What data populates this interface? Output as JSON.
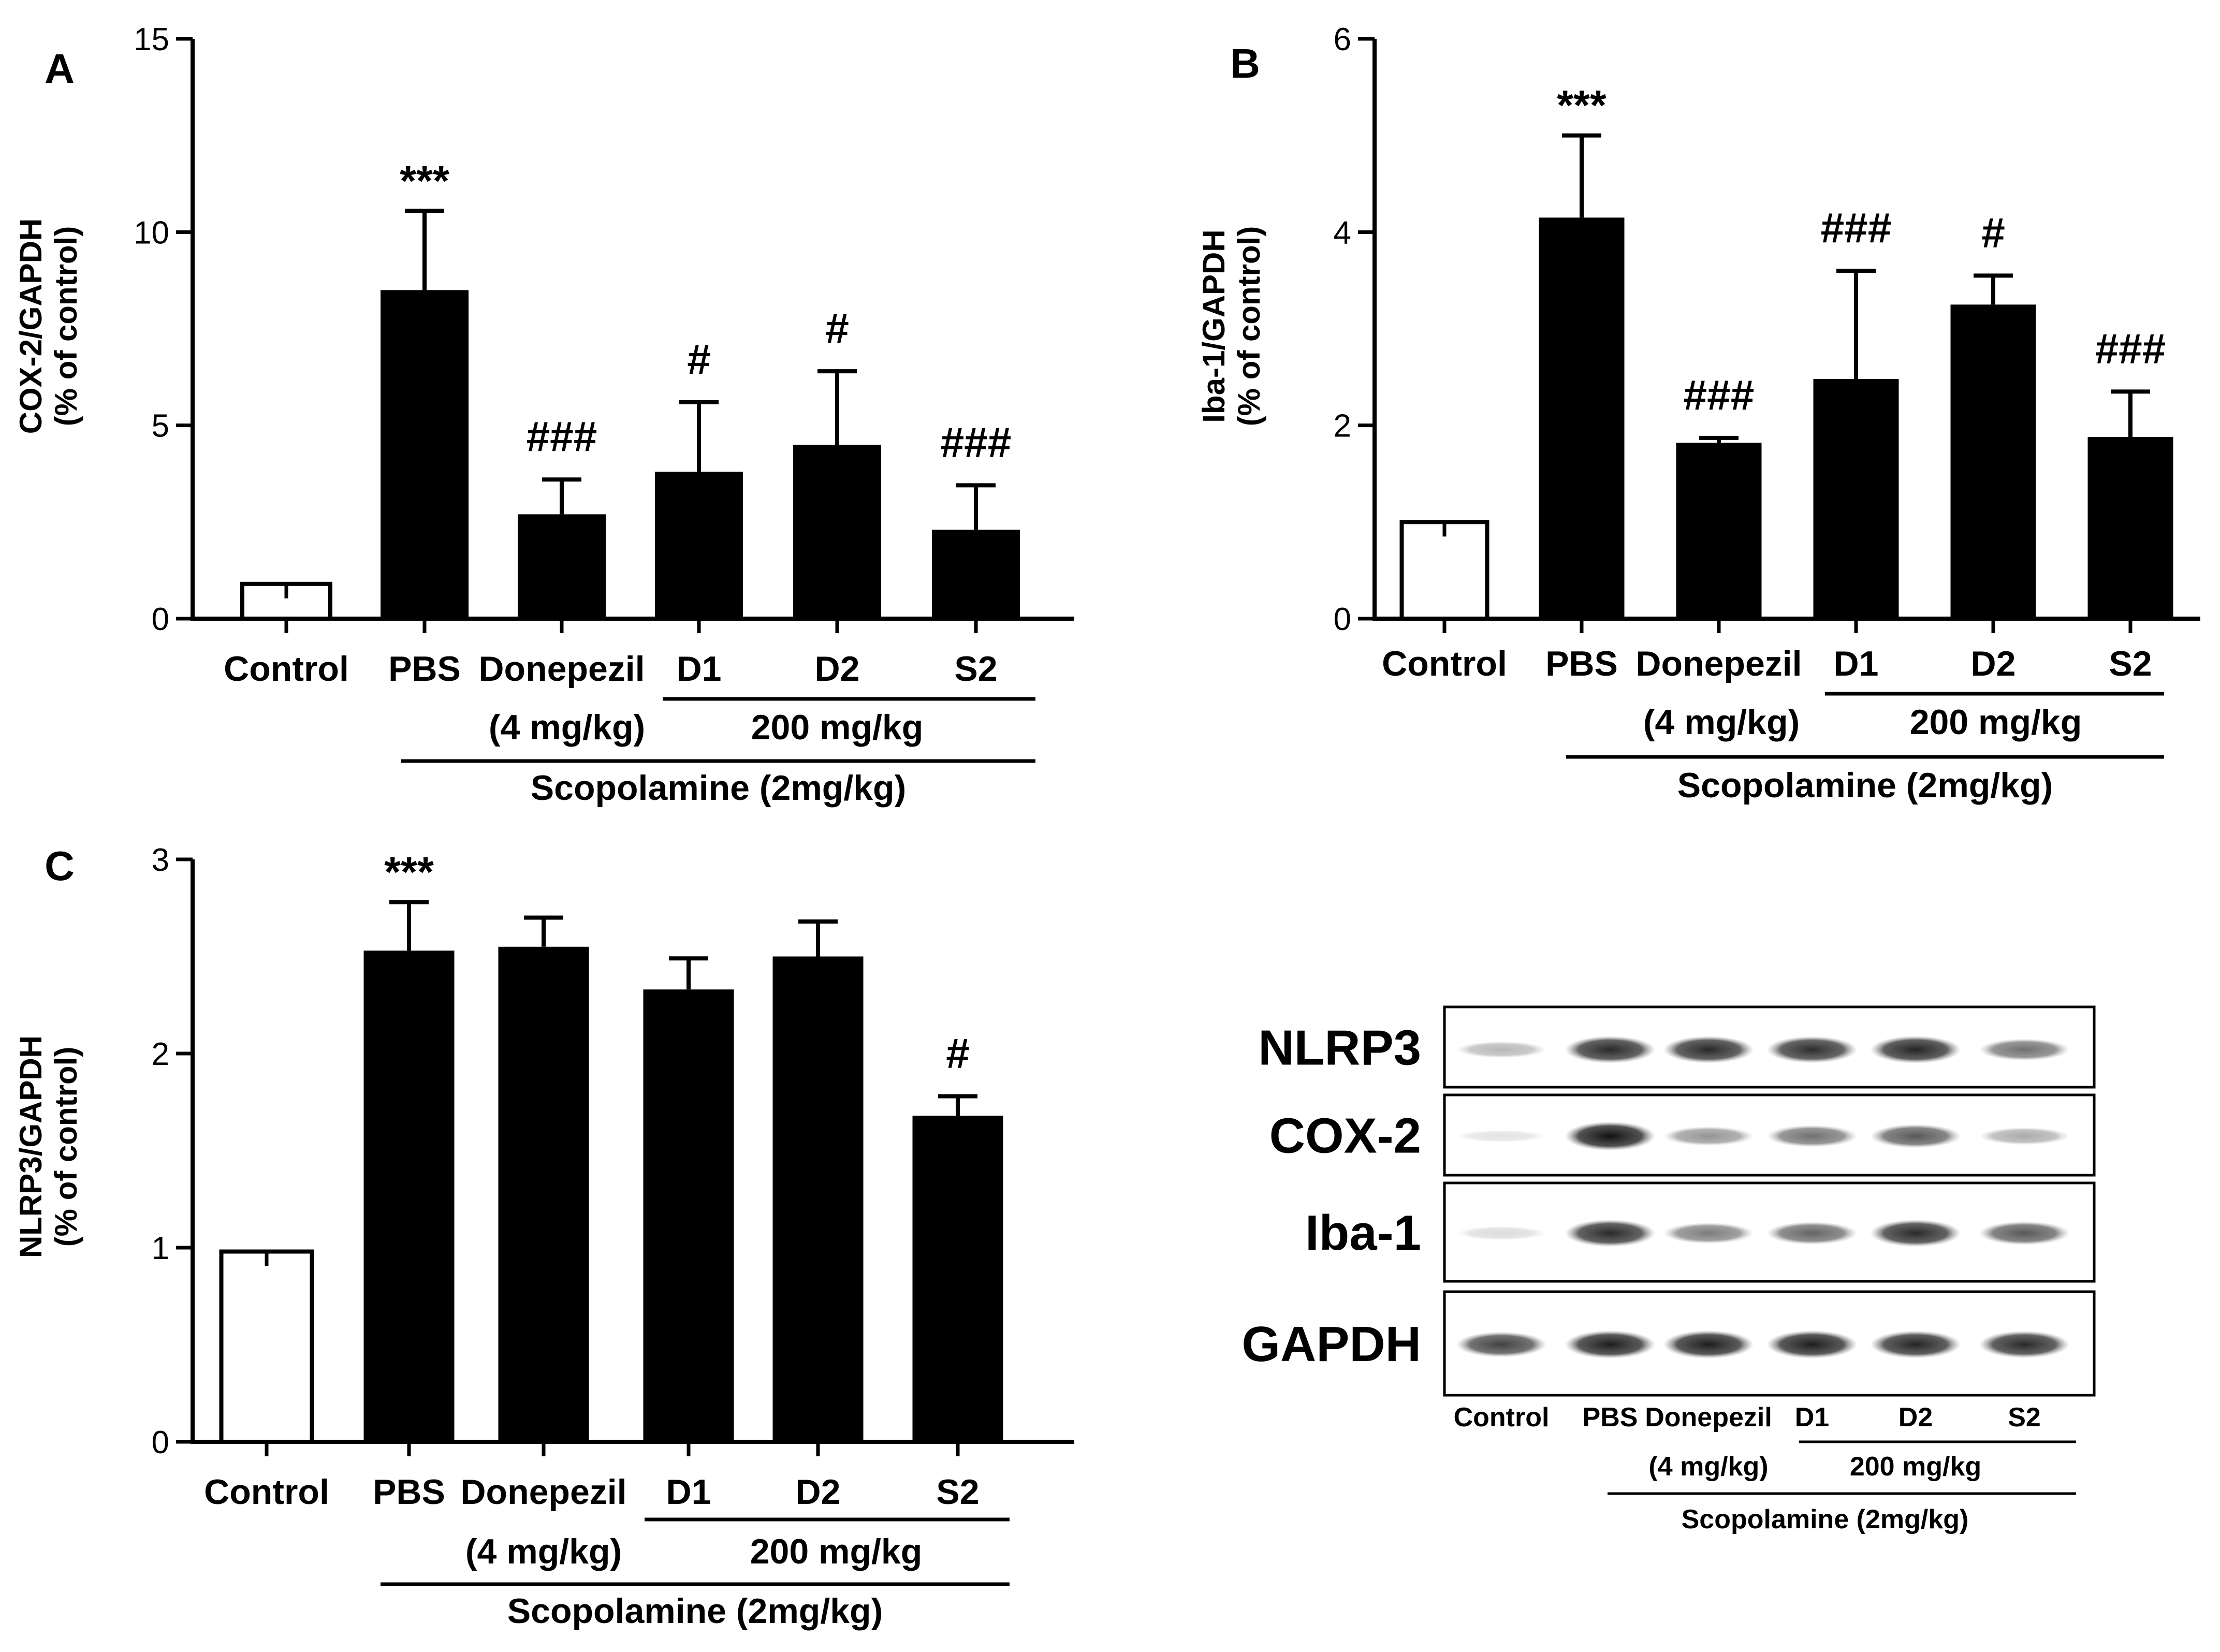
{
  "chart_data": [
    {
      "type": "bar",
      "panel": "A",
      "categories": [
        "Control",
        "PBS",
        "Donepezil",
        "D1",
        "D2",
        "S2"
      ],
      "values": [
        0.9,
        8.5,
        2.7,
        3.8,
        4.5,
        2.3
      ],
      "errors": [
        0,
        2.05,
        0.9,
        1.8,
        1.9,
        1.15
      ],
      "significance": [
        "",
        "***",
        "###",
        "#",
        "#",
        "###"
      ],
      "ylabel_lines": [
        "COX-2/GAPDH",
        "(% of control)"
      ],
      "ylim": [
        0,
        15
      ],
      "yticks": [
        0,
        5,
        10,
        15
      ],
      "group_labels": {
        "donepezil_dose": "(4 mg/kg)",
        "dose": "200 mg/kg",
        "treatment": "Scopolamine (2mg/kg)"
      },
      "grid": false,
      "bar_colors": [
        "#ffffff",
        "#000000",
        "#000000",
        "#000000",
        "#000000",
        "#000000"
      ]
    },
    {
      "type": "bar",
      "panel": "B",
      "categories": [
        "Control",
        "PBS",
        "Donepezil",
        "D1",
        "D2",
        "S2"
      ],
      "values": [
        1.0,
        4.15,
        1.82,
        2.48,
        3.25,
        1.88
      ],
      "errors": [
        0,
        0.85,
        0.05,
        1.12,
        0.3,
        0.47
      ],
      "significance": [
        "",
        "***",
        "###",
        "###",
        "#",
        "###"
      ],
      "ylabel_lines": [
        "Iba-1/GAPDH",
        "(% of control)"
      ],
      "ylim": [
        0,
        6
      ],
      "yticks": [
        0,
        2,
        4,
        6
      ],
      "group_labels": {
        "donepezil_dose": "(4 mg/kg)",
        "dose": "200 mg/kg",
        "treatment": "Scopolamine (2mg/kg)"
      },
      "grid": false,
      "bar_colors": [
        "#ffffff",
        "#000000",
        "#000000",
        "#000000",
        "#000000",
        "#000000"
      ]
    },
    {
      "type": "bar",
      "panel": "C",
      "categories": [
        "Control",
        "PBS",
        "Donepezil",
        "D1",
        "D2",
        "S2"
      ],
      "values": [
        0.98,
        2.53,
        2.55,
        2.33,
        2.5,
        1.68
      ],
      "errors": [
        0,
        0.25,
        0.15,
        0.16,
        0.18,
        0.1
      ],
      "significance": [
        "",
        "***",
        "",
        "",
        "",
        "#"
      ],
      "ylabel_lines": [
        "NLRP3/GAPDH",
        "(% of control)"
      ],
      "ylim": [
        0,
        3
      ],
      "yticks": [
        0,
        1,
        2,
        3
      ],
      "group_labels": {
        "donepezil_dose": "(4 mg/kg)",
        "dose": "200 mg/kg",
        "treatment": "Scopolamine (2mg/kg)"
      },
      "grid": false,
      "bar_colors": [
        "#ffffff",
        "#000000",
        "#000000",
        "#000000",
        "#000000",
        "#000000"
      ]
    }
  ],
  "blot": {
    "rows": [
      {
        "label": "NLRP3",
        "intensities": [
          0.3,
          0.9,
          0.9,
          0.88,
          0.92,
          0.6
        ]
      },
      {
        "label": "COX-2",
        "intensities": [
          0.05,
          1.0,
          0.45,
          0.6,
          0.7,
          0.35
        ]
      },
      {
        "label": "Iba-1",
        "intensities": [
          0.15,
          0.9,
          0.55,
          0.65,
          0.9,
          0.7
        ]
      },
      {
        "label": "GAPDH",
        "intensities": [
          0.8,
          0.95,
          0.95,
          0.95,
          0.92,
          0.9
        ]
      }
    ],
    "lanes": [
      "Control",
      "PBS",
      "Donepezil",
      "D1",
      "D2",
      "S2"
    ],
    "group_labels": {
      "donepezil_dose": "(4 mg/kg)",
      "dose": "200 mg/kg",
      "treatment": "Scopolamine (2mg/kg)"
    }
  }
}
